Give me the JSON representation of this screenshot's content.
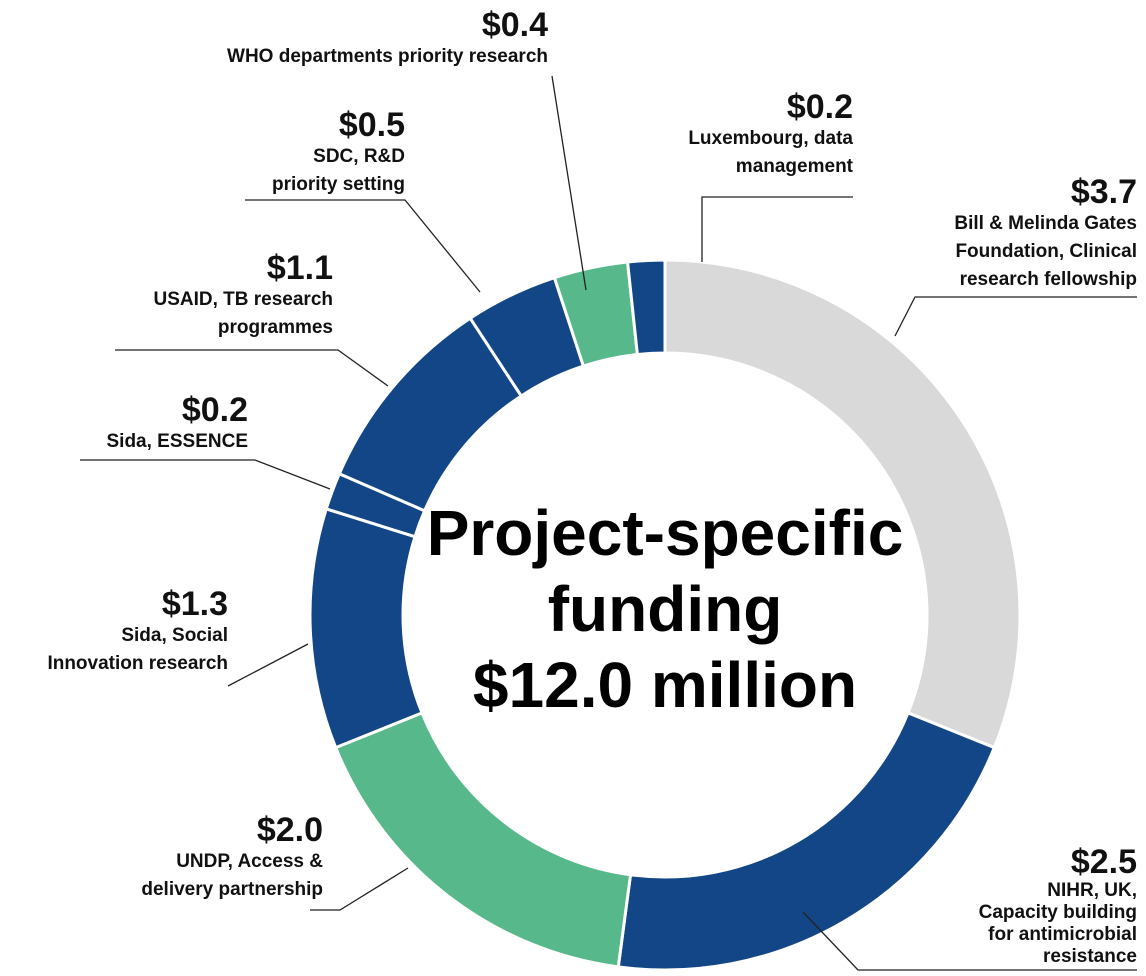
{
  "chart_data": {
    "type": "donut",
    "center_label": [
      "Project-specific",
      "funding",
      "$12.0 million"
    ],
    "categories": [
      [
        "Bill & Melinda Gates",
        "Foundation, Clinical",
        "research fellowship"
      ],
      [
        "NIHR, UK,",
        "Capacity building",
        "for antimicrobial",
        "resistance"
      ],
      [
        "UNDP, Access &",
        "delivery partnership"
      ],
      [
        "Sida, Social",
        "Innovation research"
      ],
      [
        "Sida, ESSENCE"
      ],
      [
        "USAID, TB research",
        "programmes"
      ],
      [
        "SDC, R&D",
        "priority setting"
      ],
      [
        "WHO departments priority research"
      ],
      [
        "Luxembourg, data",
        "management"
      ]
    ],
    "values": [
      3.7,
      2.5,
      2.0,
      1.3,
      0.2,
      1.1,
      0.5,
      0.4,
      0.2
    ],
    "value_labels": [
      "$3.7",
      "$2.5",
      "$2.0",
      "$1.3",
      "$0.2",
      "$1.1",
      "$0.5",
      "$0.4",
      "$0.2"
    ],
    "colors": [
      "#d9d9d9",
      "#134686",
      "#57b98b",
      "#134686",
      "#134686",
      "#134686",
      "#134686",
      "#57b98b",
      "#134686"
    ]
  }
}
